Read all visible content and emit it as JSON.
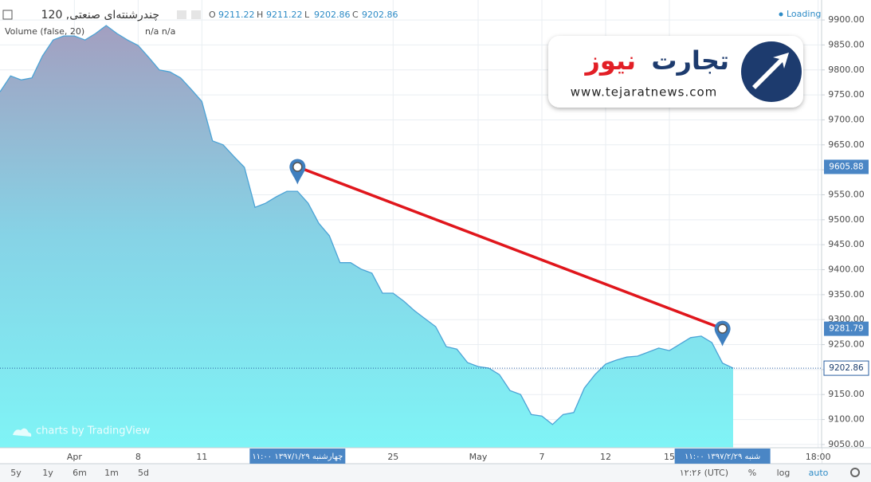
{
  "chart_data": {
    "type": "area",
    "title": "چندرشنته‌ای صنعتی, 120",
    "ohlc": [
      {
        "name": "O",
        "value": 9211.22
      },
      {
        "name": "H",
        "value": 9211.22
      },
      {
        "name": "L",
        "value": 9202.86
      },
      {
        "name": "C",
        "value": 9202.86
      }
    ],
    "indicator": "Volume (false, 20)",
    "indicator_values": "n/a n/a",
    "status": "Loading",
    "watermark": "charts by TradingView",
    "logo": {
      "title_parts": [
        "تجارت",
        "نیوز"
      ],
      "url": "www.tejaratnews.com"
    },
    "categories": [
      null,
      null,
      null,
      null,
      null,
      null,
      null,
      "Apr",
      null,
      null,
      null,
      null,
      null,
      "8",
      null,
      null,
      null,
      null,
      null,
      "11",
      null,
      null,
      null,
      null,
      null,
      null,
      null,
      null,
      "چهارشنبه ۱۳۹۷/۱/۲۹  ۱۱:۰۰",
      null,
      null,
      null,
      null,
      null,
      null,
      null,
      null,
      "25",
      null,
      null,
      null,
      null,
      null,
      null,
      null,
      "May",
      null,
      null,
      null,
      null,
      null,
      "7",
      null,
      null,
      null,
      null,
      null,
      "12",
      null,
      null,
      null,
      null,
      null,
      "15",
      null,
      null,
      null,
      null,
      "شنبه ۱۳۹۷/۲/۲۹  ۱۱:۰۰",
      null,
      null,
      null,
      null,
      null,
      null,
      null,
      null,
      "18:00"
    ],
    "series": [
      {
        "name": "چندرشنته‌ای صنعتی",
        "color": "#4ba3d6",
        "values": [
          9756,
          9788,
          9780,
          9784,
          9828,
          9860,
          9868,
          9868,
          9860,
          9873,
          9889,
          9873,
          9860,
          9849,
          9825,
          9800,
          9796,
          9784,
          9761,
          9737,
          9658,
          9650,
          9627,
          9605,
          9525,
          9533,
          9546,
          9557,
          9557,
          9533,
          9493,
          9468,
          9414,
          9414,
          9401,
          9393,
          9353,
          9353,
          9337,
          9318,
          9302,
          9286,
          9246,
          9241,
          9214,
          9206,
          9203,
          9190,
          9158,
          9150,
          9110,
          9107,
          9090,
          9110,
          9114,
          9163,
          9190,
          9211,
          9219,
          9225,
          9227,
          9235,
          9243,
          9238,
          9251,
          9264,
          9267,
          9254,
          9213,
          9202.86,
          null,
          null,
          null,
          null,
          null,
          null,
          null,
          null
        ]
      }
    ],
    "trend_line": {
      "color": "#e0161c",
      "points": [
        {
          "x": "چهارشنبه ۱۳۹۷/۱/۲۹  ۱۱:۰۰",
          "y": 9605.88
        },
        {
          "x": "شنبه ۱۳۹۷/۲/۲۹  ۱۱:۰۰",
          "y": 9281.79
        }
      ]
    },
    "ylim": [
      9043.5,
      9940
    ],
    "yticks": [
      {
        "value": 9050,
        "label": "9050.00"
      },
      {
        "value": 9100,
        "label": "9100.00"
      },
      {
        "value": 9150,
        "label": "9150.00"
      },
      {
        "value": 9200,
        "label": "9200.00"
      },
      {
        "value": 9250,
        "label": "9250.00"
      },
      {
        "value": 9300,
        "label": "9300.00"
      },
      {
        "value": 9350,
        "label": "9350.00"
      },
      {
        "value": 9400,
        "label": "9400.00"
      },
      {
        "value": 9450,
        "label": "9450.00"
      },
      {
        "value": 9500,
        "label": "9500.00"
      },
      {
        "value": 9550,
        "label": "9550.00"
      },
      {
        "value": 9600,
        "label": "9600.00"
      },
      {
        "value": 9650,
        "label": "9650.00"
      },
      {
        "value": 9700,
        "label": "9700.00"
      },
      {
        "value": 9750,
        "label": "9750.00"
      },
      {
        "value": 9800,
        "label": "9800.00"
      },
      {
        "value": 9850,
        "label": "9850.00"
      },
      {
        "value": 9900,
        "label": "9900.00"
      }
    ],
    "grid": true,
    "toolbar": {
      "ranges": [
        "5y",
        "1y",
        "6m",
        "1m",
        "5d"
      ],
      "time": "۱۲:۲۶ (UTC)",
      "options": [
        "%",
        "log",
        "auto"
      ]
    }
  }
}
